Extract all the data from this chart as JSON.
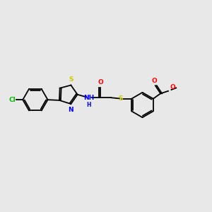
{
  "background_color": "#e8e8e8",
  "bond_color": "#000000",
  "S_color": "#cccc00",
  "N_color": "#0000ff",
  "O_color": "#ff0000",
  "Cl_color": "#00bb00",
  "figsize": [
    3.0,
    3.0
  ],
  "dpi": 100,
  "xlim": [
    0,
    10
  ],
  "ylim": [
    0,
    10
  ],
  "lw": 1.3,
  "fs": 6.5,
  "offset_r": 0.065
}
